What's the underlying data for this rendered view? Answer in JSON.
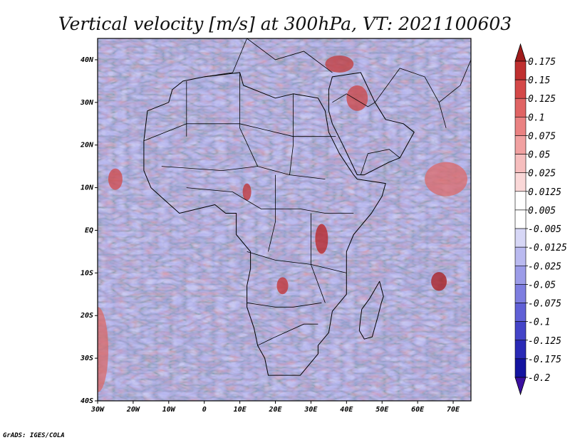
{
  "title": "Vertical velocity [m/s] at 300hPa, VT: 2021100603",
  "credit": "GrADS: IGES/COLA",
  "map": {
    "lon_range": [
      -30,
      75
    ],
    "lat_range": [
      -40,
      45
    ],
    "lon_ticks": [
      {
        "value": -30,
        "label": "30W"
      },
      {
        "value": -20,
        "label": "20W"
      },
      {
        "value": -10,
        "label": "10W"
      },
      {
        "value": 0,
        "label": "0"
      },
      {
        "value": 10,
        "label": "10E"
      },
      {
        "value": 20,
        "label": "20E"
      },
      {
        "value": 30,
        "label": "30E"
      },
      {
        "value": 40,
        "label": "40E"
      },
      {
        "value": 50,
        "label": "50E"
      },
      {
        "value": 60,
        "label": "60E"
      },
      {
        "value": 70,
        "label": "70E"
      }
    ],
    "lat_ticks": [
      {
        "value": 40,
        "label": "40N"
      },
      {
        "value": 30,
        "label": "30N"
      },
      {
        "value": 20,
        "label": "20N"
      },
      {
        "value": 10,
        "label": "10N"
      },
      {
        "value": 0,
        "label": "EQ"
      },
      {
        "value": -10,
        "label": "10S"
      },
      {
        "value": -20,
        "label": "20S"
      },
      {
        "value": -30,
        "label": "30S"
      },
      {
        "value": -40,
        "label": "40S"
      }
    ]
  },
  "colorbar": {
    "labels": [
      "0.175",
      "0.15",
      "0.125",
      "0.1",
      "0.075",
      "0.05",
      "0.025",
      "0.0125",
      "0.005",
      "-0.005",
      "-0.0125",
      "-0.025",
      "-0.05",
      "-0.075",
      "-0.1",
      "-0.125",
      "-0.175",
      "-0.2"
    ],
    "colors": [
      "#a01c1c",
      "#bf2f2f",
      "#d44848",
      "#e06464",
      "#ea8282",
      "#f1a1a1",
      "#f6bebe",
      "#fad8d8",
      "#ffffff",
      "#ffffff",
      "#d7d7f6",
      "#babaf0",
      "#9c9ce8",
      "#7e7ee0",
      "#6060d6",
      "#4444c8",
      "#2a2ab6",
      "#1414a0",
      "#3a10a0"
    ]
  },
  "continent_outline": [
    [
      -17,
      21
    ],
    [
      -16,
      28
    ],
    [
      -10,
      30
    ],
    [
      -9,
      33
    ],
    [
      -6,
      35
    ],
    [
      0,
      36
    ],
    [
      10,
      37
    ],
    [
      11,
      34
    ],
    [
      20,
      31
    ],
    [
      25,
      32
    ],
    [
      32,
      31
    ],
    [
      34,
      28
    ],
    [
      35,
      23
    ],
    [
      38,
      18
    ],
    [
      42,
      13
    ],
    [
      43,
      12
    ],
    [
      51,
      11
    ],
    [
      50,
      8
    ],
    [
      47,
      4
    ],
    [
      42,
      -1
    ],
    [
      40,
      -5
    ],
    [
      40,
      -10
    ],
    [
      40,
      -15
    ],
    [
      36,
      -19
    ],
    [
      35,
      -24
    ],
    [
      32,
      -27
    ],
    [
      32,
      -29
    ],
    [
      30,
      -31
    ],
    [
      27,
      -34
    ],
    [
      22,
      -34
    ],
    [
      18,
      -34
    ],
    [
      17,
      -30
    ],
    [
      15,
      -27
    ],
    [
      14,
      -23
    ],
    [
      12,
      -18
    ],
    [
      12,
      -13
    ],
    [
      13,
      -9
    ],
    [
      13,
      -5
    ],
    [
      9,
      -1
    ],
    [
      9,
      4
    ],
    [
      6,
      4
    ],
    [
      3,
      6
    ],
    [
      -2,
      5
    ],
    [
      -7,
      4
    ],
    [
      -11,
      7
    ],
    [
      -15,
      10
    ],
    [
      -17,
      14
    ],
    [
      -17,
      21
    ]
  ],
  "arabia_outline": [
    [
      35,
      33
    ],
    [
      36,
      36
    ],
    [
      44,
      37
    ],
    [
      48,
      30
    ],
    [
      51,
      26
    ],
    [
      56,
      25
    ],
    [
      59,
      23
    ],
    [
      55,
      17
    ],
    [
      52,
      16
    ],
    [
      45,
      13
    ],
    [
      43,
      13
    ],
    [
      39,
      20
    ],
    [
      36,
      25
    ],
    [
      35,
      28
    ],
    [
      35,
      33
    ]
  ],
  "madagascar_outline": [
    [
      49.3,
      -12
    ],
    [
      50.4,
      -15.5
    ],
    [
      49.8,
      -17
    ],
    [
      48.9,
      -20
    ],
    [
      47.2,
      -25
    ],
    [
      45,
      -25.5
    ],
    [
      43.6,
      -23.5
    ],
    [
      43.9,
      -21
    ],
    [
      44.3,
      -18.5
    ],
    [
      46.5,
      -16
    ],
    [
      49.3,
      -12
    ]
  ]
}
